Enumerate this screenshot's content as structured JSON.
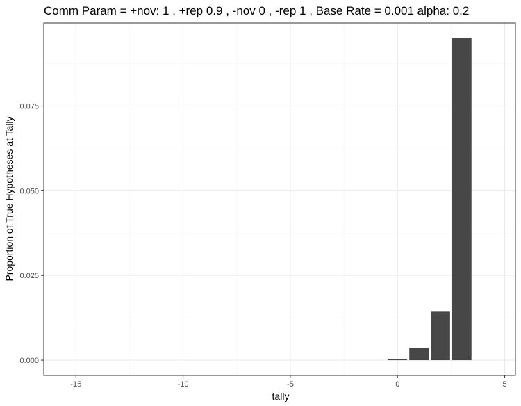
{
  "chart_data": {
    "type": "bar",
    "title": "Comm Param = +nov: 1 , +rep 0.9 , -nov 0 , -rep 1 , Base Rate =  0.001 alpha: 0.2",
    "xlabel": "tally",
    "ylabel": "Proportion of True Hypotheses at Tally",
    "xlim": [
      -16.5,
      5.5
    ],
    "ylim": [
      -0.0045,
      0.0995
    ],
    "x_ticks": [
      -15,
      -10,
      -5,
      0,
      5
    ],
    "x_tick_labels": [
      "-15",
      "-10",
      "-5",
      "0",
      "5"
    ],
    "y_ticks": [
      0,
      0.025,
      0.05,
      0.075
    ],
    "y_tick_labels": [
      "0.000",
      "0.025",
      "0.050",
      "0.075"
    ],
    "x": [
      0,
      1,
      2,
      3
    ],
    "values": [
      0.0003,
      0.0037,
      0.0143,
      0.095
    ],
    "bar_color": "#474747",
    "panel_border_color": "#333333",
    "grid": true,
    "grid_major_color": "#ebebeb",
    "grid_minor_color": "#f4f4f4"
  }
}
